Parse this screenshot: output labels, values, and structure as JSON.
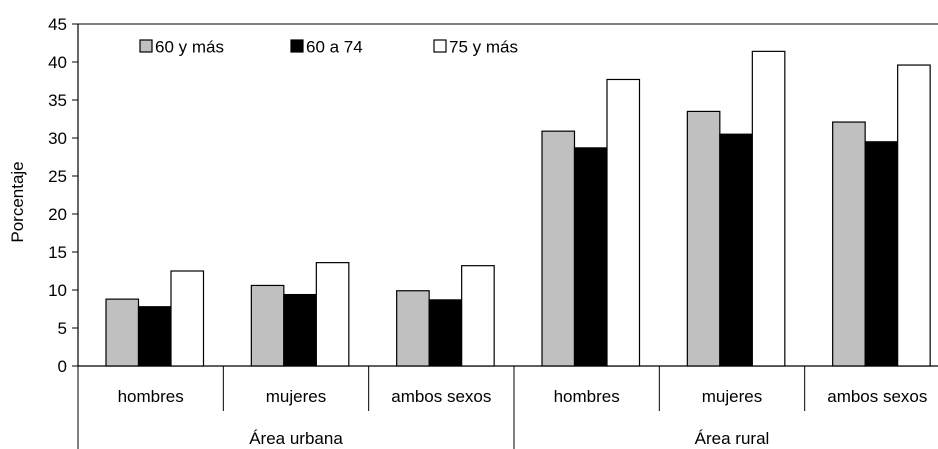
{
  "chart_data": {
    "type": "bar",
    "ylabel": "Porcentaje",
    "ylim": [
      0,
      45
    ],
    "yticks": [
      0,
      5,
      10,
      15,
      20,
      25,
      30,
      35,
      40,
      45
    ],
    "grid": false,
    "legend_position": "top-left",
    "categories": [
      "hombres",
      "mujeres",
      "ambos sexos",
      "hombres",
      "mujeres",
      "ambos sexos"
    ],
    "groups": [
      {
        "label": "Área urbana",
        "span": 3
      },
      {
        "label": "Área rural",
        "span": 3
      }
    ],
    "series": [
      {
        "name": "60 y más",
        "color": "#c0c0c0",
        "values": [
          8.8,
          10.6,
          9.9,
          30.9,
          33.5,
          32.1
        ]
      },
      {
        "name": "60 a 74",
        "color": "#000000",
        "values": [
          7.8,
          9.4,
          8.7,
          28.7,
          30.5,
          29.5
        ]
      },
      {
        "name": "75 y más",
        "color": "#ffffff",
        "values": [
          12.5,
          13.6,
          13.2,
          37.7,
          41.4,
          39.6
        ]
      }
    ]
  }
}
